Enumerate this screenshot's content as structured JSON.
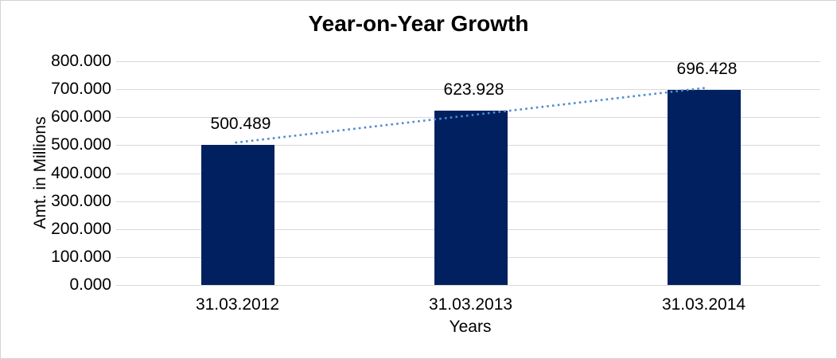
{
  "window": {
    "background": "#ffffff",
    "border_color": "#d3d3d3"
  },
  "chart_data": {
    "type": "bar",
    "title": "Year-on-Year Growth",
    "xlabel": "Years",
    "ylabel": "Amt. in Millions",
    "categories": [
      "31.03.2012",
      "31.03.2013",
      "31.03.2014"
    ],
    "values": [
      500.489,
      623.928,
      696.428
    ],
    "data_labels": [
      "500.489",
      "623.928",
      "696.428"
    ],
    "ylim": [
      0,
      800
    ],
    "ytick_step": 100,
    "ytick_labels": [
      "0.000",
      "100.000",
      "200.000",
      "300.000",
      "400.000",
      "500.000",
      "600.000",
      "700.000",
      "800.000"
    ],
    "grid": "horizontal-only",
    "legend": "none",
    "bar_color": "#002060",
    "gridline_color": "#d9d9d9",
    "text_color": "#000000",
    "trendline": {
      "type": "linear",
      "style": "dotted",
      "color": "#4e8bd0",
      "fitted_endpoints": [
        508.98,
        704.92
      ]
    }
  }
}
